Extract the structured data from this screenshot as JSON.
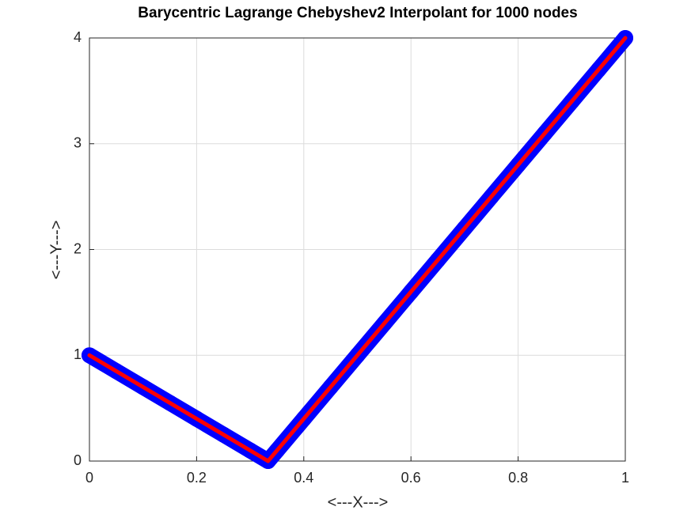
{
  "chart_data": {
    "type": "line",
    "title": "Barycentric Lagrange Chebyshev2 Interpolant for 1000 nodes",
    "xlabel": "<---X--->",
    "ylabel": "<---Y--->",
    "x": [
      0,
      0.05,
      0.1,
      0.15,
      0.2,
      0.25,
      0.3,
      0.3333,
      0.35,
      0.4,
      0.45,
      0.5,
      0.55,
      0.6,
      0.65,
      0.7,
      0.75,
      0.8,
      0.85,
      0.9,
      0.95,
      1
    ],
    "series": [
      {
        "color": "#0000ff",
        "marker": true,
        "values": [
          1,
          0.85,
          0.7,
          0.55,
          0.4,
          0.25,
          0.1,
          0,
          0.1,
          0.4,
          0.7,
          1,
          1.3,
          1.6,
          1.9,
          2.2,
          2.5,
          2.8,
          3.1,
          3.4,
          3.7,
          4
        ]
      },
      {
        "color": "#ff0000",
        "marker": false,
        "values": [
          1,
          0.85,
          0.7,
          0.55,
          0.4,
          0.25,
          0.1,
          0,
          0.1,
          0.4,
          0.7,
          1,
          1.3,
          1.6,
          1.9,
          2.2,
          2.5,
          2.8,
          3.1,
          3.4,
          3.7,
          4
        ]
      }
    ],
    "xlim": [
      0,
      1
    ],
    "xticks": [
      0,
      0.2,
      0.4,
      0.6,
      0.8,
      1
    ],
    "ylim": [
      0,
      4
    ],
    "yticks": [
      0,
      1,
      2,
      3,
      4
    ],
    "grid": true
  }
}
